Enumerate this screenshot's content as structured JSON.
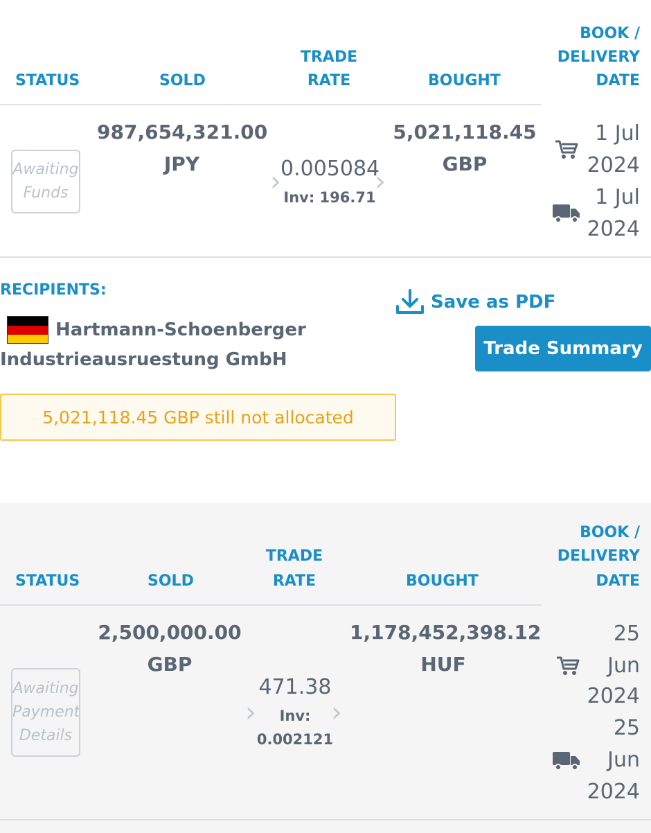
{
  "headers": {
    "status": "STATUS",
    "sold": "SOLD",
    "trade_rate_1": "TRADE",
    "trade_rate_2": "RATE",
    "bought": "BOUGHT",
    "date_1": "BOOK /",
    "date_2": "DELIVERY",
    "date_3": "DATE"
  },
  "trade1": {
    "status_1": "Awaiting",
    "status_2": "Funds",
    "sold_amount": "987,654,321.00",
    "sold_ccy": "JPY",
    "rate": "0.005084",
    "inv": "Inv: 196.71",
    "bought_amount": "5,021,118.45",
    "bought_ccy": "GBP",
    "book_date_1": "1 Jul",
    "book_date_2": "2024",
    "delivery_date_1": "1 Jul",
    "delivery_date_2": "2024"
  },
  "recipients": {
    "label": "RECIPIENTS:",
    "name_1": "Hartmann-Schoenberger",
    "name_2": "Industrieausruestung GmbH"
  },
  "actions": {
    "save_pdf": "Save as PDF",
    "trade_summary": "Trade Summary"
  },
  "warning": "5,021,118.45 GBP still not allocated",
  "trade2": {
    "status_1": "Awaiting",
    "status_2": "Payment",
    "status_3": "Details",
    "sold_amount": "2,500,000.00",
    "sold_ccy": "GBP",
    "rate": "471.38",
    "inv_1": "Inv:",
    "inv_2": "0.002121",
    "bought_amount": "1,178,452,398.12",
    "bought_ccy": "HUF",
    "book_date_1": "25",
    "book_date_2": "Jun",
    "book_date_3": "2024",
    "delivery_date_1": "25",
    "delivery_date_2": "Jun",
    "delivery_date_3": "2024"
  },
  "icons": {
    "cart": "cart-icon",
    "truck": "truck-icon",
    "download": "download-icon",
    "flag": "germany-flag-icon",
    "chevron": "chevron-right-icon"
  },
  "colors": {
    "accent": "#1a8fc7",
    "warning_text": "#e6a21a",
    "warning_border": "#f2c94c"
  }
}
